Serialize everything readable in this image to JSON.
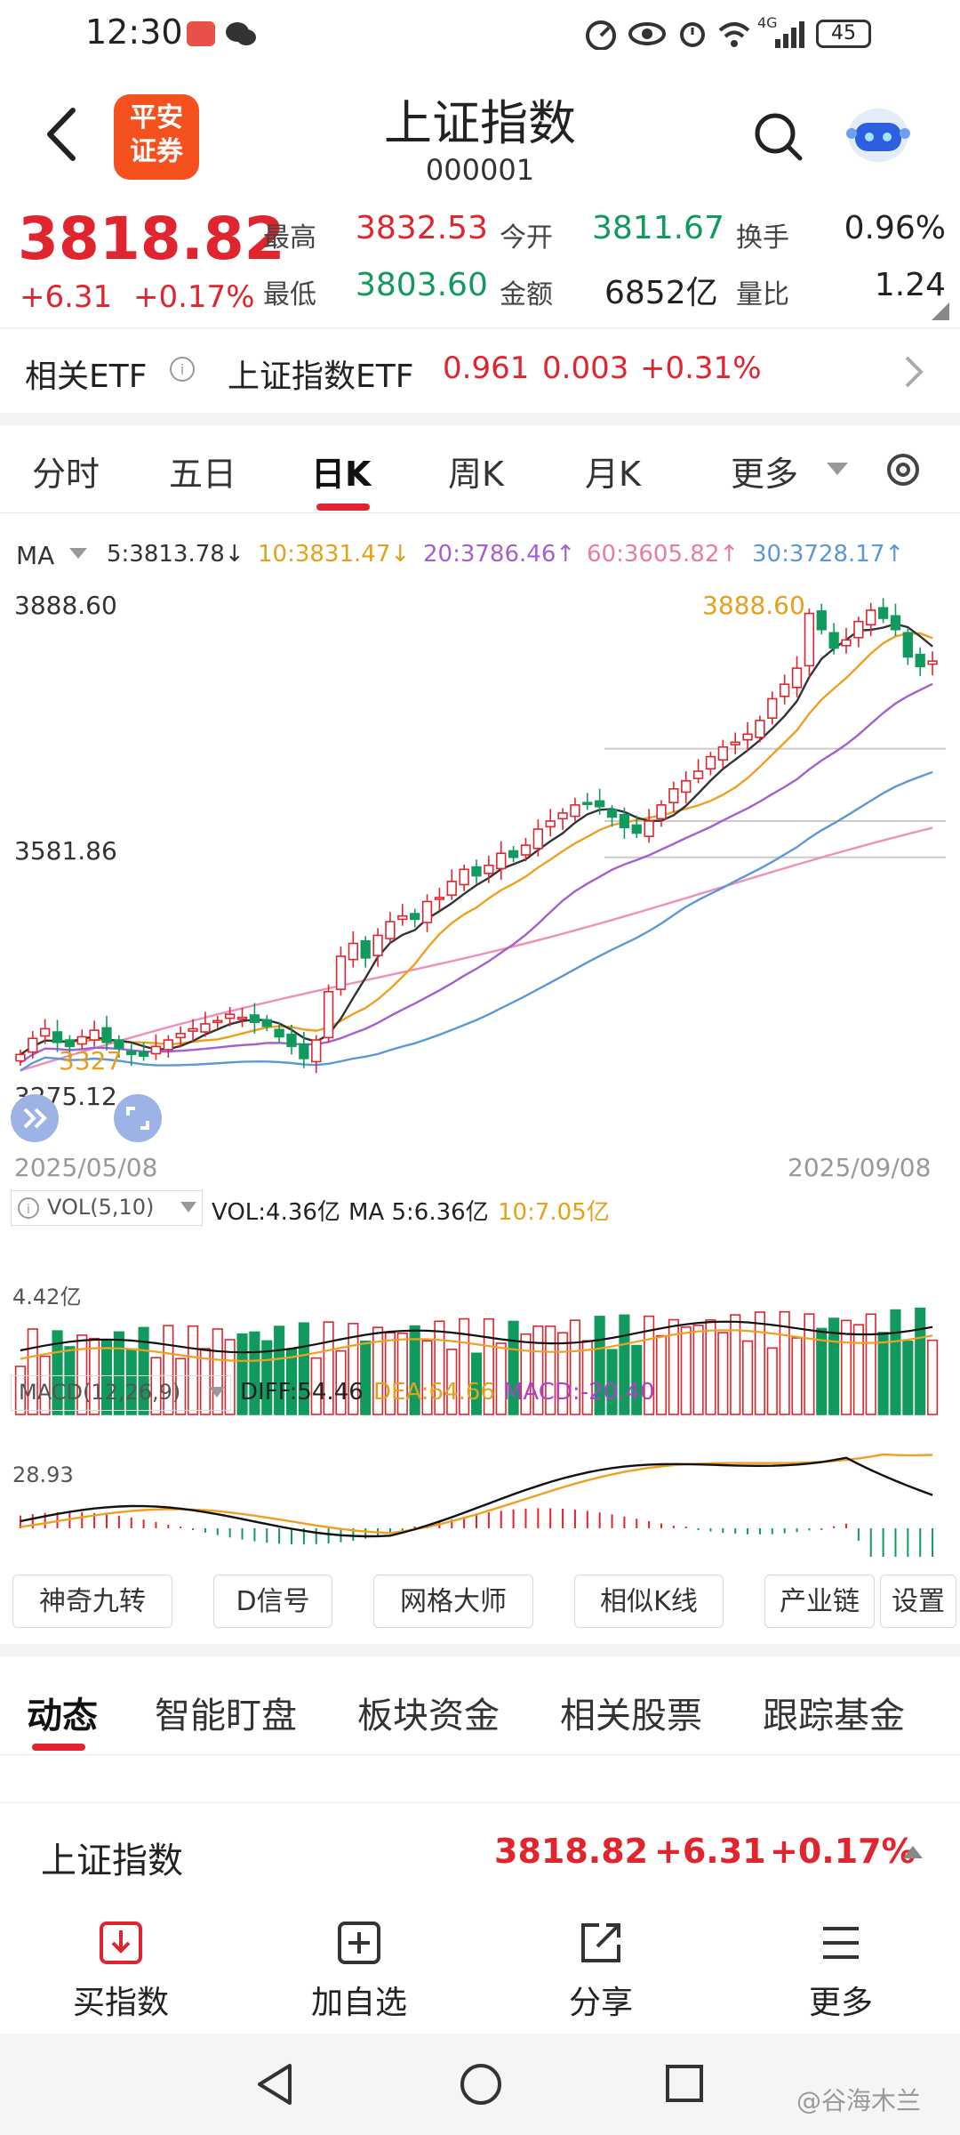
{
  "status_bar": {
    "time": "12:30",
    "battery": "45",
    "network": "4G"
  },
  "header": {
    "title": "上证指数",
    "code": "000001",
    "logo_text_line1": "平安",
    "logo_text_line2": "证券"
  },
  "quote": {
    "price": "3818.82",
    "change": "+6.31",
    "change_pct": "+0.17%",
    "high_label": "最高",
    "high": "3832.53",
    "low_label": "最低",
    "low": "3803.60",
    "open_label": "今开",
    "open": "3811.67",
    "amount_label": "金额",
    "amount": "6852亿",
    "turnover_label": "换手",
    "turnover": "0.96%",
    "volratio_label": "量比",
    "volratio": "1.24"
  },
  "etf": {
    "label": "相关ETF",
    "name": "上证指数ETF",
    "price": "0.961",
    "change": "0.003",
    "pct": "+0.31%"
  },
  "ktabs": {
    "items": [
      "分时",
      "五日",
      "日K",
      "周K",
      "月K",
      "更多"
    ],
    "active": "日K"
  },
  "ma_legend": {
    "label": "MA",
    "ma5": "5:3813.78↓",
    "ma10": "10:3831.47↓",
    "ma20": "20:3786.46↑",
    "ma60": "60:3605.82↑",
    "ma30": "30:3728.17↑"
  },
  "chart_labels": {
    "y_top": "3888.60",
    "y_mid": "3581.86",
    "y_low": "3275.12",
    "high_mark": "3888.60",
    "low_mark": "3327",
    "date_start": "2025/05/08",
    "date_end": "2025/09/08"
  },
  "vol": {
    "selector": "VOL(5,10)",
    "vol": "VOL:4.36亿",
    "ma5": "MA 5:6.36亿",
    "ma10": "10:7.05亿",
    "axis": "4.42亿"
  },
  "macd": {
    "selector": "MACD(12,26,9)",
    "diff": "DIFF:54.46",
    "dea": "DEA:64.66",
    "macd": "MACD:-20.40",
    "axis": "28.93"
  },
  "tool_buttons": [
    "神奇九转",
    "D信号",
    "网格大师",
    "相似K线",
    "产业链",
    "设置"
  ],
  "info_tabs": {
    "items": [
      "动态",
      "智能盯盘",
      "板块资金",
      "相关股票",
      "跟踪基金"
    ],
    "active": "动态"
  },
  "ticker": {
    "name": "上证指数",
    "price": "3818.82",
    "change": "+6.31",
    "pct": "+0.17%"
  },
  "bottom_nav": {
    "items": [
      "买指数",
      "加自选",
      "分享",
      "更多"
    ]
  },
  "watermark": "@谷海木兰",
  "colors": {
    "up": "#e0252f",
    "down": "#119a5e",
    "ma5": "#333333",
    "ma10": "#f0a020",
    "ma20": "#a55fd0",
    "ma60": "#f08fb8",
    "ma30": "#5a98d8"
  },
  "chart_data": {
    "type": "candlestick",
    "x_range": [
      "2025/05/08",
      "2025/09/08"
    ],
    "y_range": [
      3275.12,
      3888.6
    ],
    "closes": [
      3330,
      3350,
      3362,
      3345,
      3340,
      3352,
      3360,
      3345,
      3338,
      3330,
      3328,
      3340,
      3348,
      3356,
      3362,
      3368,
      3372,
      3380,
      3376,
      3370,
      3365,
      3352,
      3340,
      3325,
      3348,
      3408,
      3452,
      3468,
      3450,
      3478,
      3495,
      3502,
      3498,
      3520,
      3525,
      3545,
      3560,
      3552,
      3565,
      3580,
      3575,
      3590,
      3610,
      3620,
      3630,
      3640,
      3642,
      3638,
      3625,
      3612,
      3605,
      3620,
      3640,
      3660,
      3670,
      3682,
      3700,
      3712,
      3718,
      3728,
      3745,
      3772,
      3790,
      3810,
      3878,
      3858,
      3835,
      3845,
      3868,
      3882,
      3872,
      3858,
      3824,
      3812,
      3818.82
    ]
  }
}
